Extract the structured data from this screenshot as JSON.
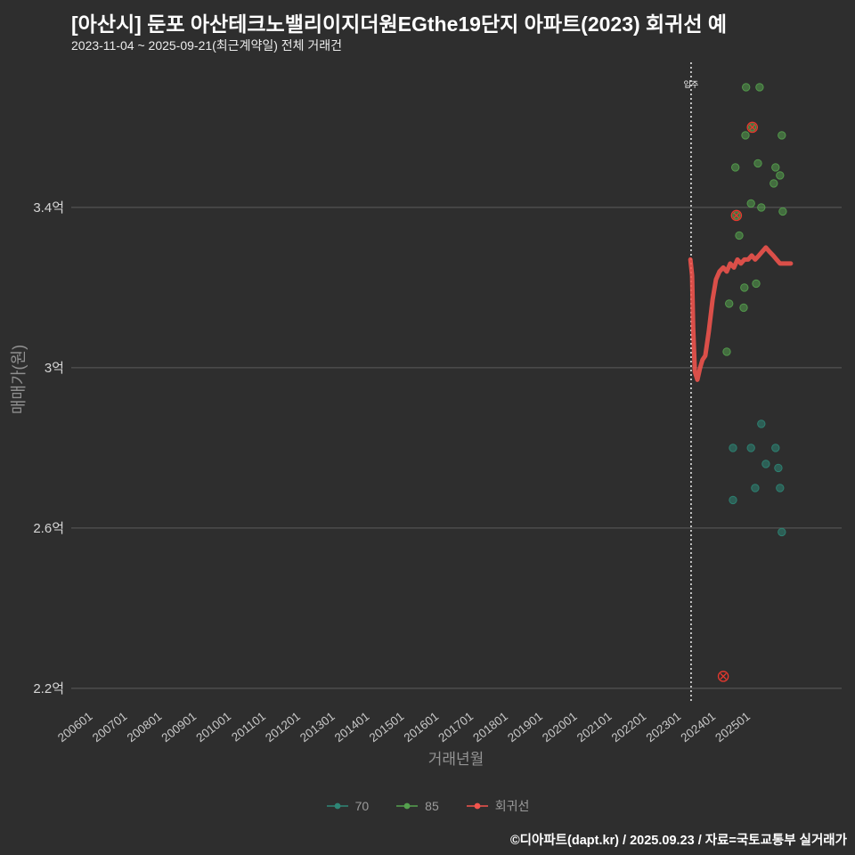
{
  "header": {
    "title": "[아산시] 둔포 아산테크노밸리이지더원EGthe19단지 아파트(2023) 회귀선 예",
    "subtitle": "2023-11-04 ~ 2025-09-21(최근계약일) 전체 거래건"
  },
  "footer": {
    "credit": "©디아파트(dapt.kr) / 2025.09.23 / 자료=국토교통부 실거래가"
  },
  "chart_data": {
    "type": "scatter",
    "title": "[아산시] 둔포 아산테크노밸리이지더원EGthe19단지 아파트(2023) 회귀선 예",
    "xlabel": "거래년월",
    "ylabel": "매매가(원)",
    "background": "#2e2e2e",
    "grid_color": "#5c5c5c",
    "grid": "horizontal-only",
    "legend_position": "bottom-center",
    "xlim": [
      2005.36,
      2027.62
    ],
    "ylim": [
      2.162,
      3.762
    ],
    "x_ticks": [
      {
        "label": "200601",
        "year": 2006
      },
      {
        "label": "200701",
        "year": 2007
      },
      {
        "label": "200801",
        "year": 2008
      },
      {
        "label": "200901",
        "year": 2009
      },
      {
        "label": "201001",
        "year": 2010
      },
      {
        "label": "201101",
        "year": 2011
      },
      {
        "label": "201201",
        "year": 2012
      },
      {
        "label": "201301",
        "year": 2013
      },
      {
        "label": "201401",
        "year": 2014
      },
      {
        "label": "201501",
        "year": 2015
      },
      {
        "label": "201601",
        "year": 2016
      },
      {
        "label": "201701",
        "year": 2017
      },
      {
        "label": "201801",
        "year": 2018
      },
      {
        "label": "201901",
        "year": 2019
      },
      {
        "label": "202001",
        "year": 2020
      },
      {
        "label": "202101",
        "year": 2021
      },
      {
        "label": "202201",
        "year": 2022
      },
      {
        "label": "202301",
        "year": 2023
      },
      {
        "label": "202401",
        "year": 2024
      },
      {
        "label": "202501",
        "year": 2025
      }
    ],
    "y_ticks": [
      {
        "label": "2.2억",
        "value": 2.2
      },
      {
        "label": "2.6억",
        "value": 2.6
      },
      {
        "label": "3억",
        "value": 3.0
      },
      {
        "label": "3.4억",
        "value": 3.4
      }
    ],
    "annotation": {
      "label": "입주",
      "year": 2023.27,
      "color": "#ffffff"
    },
    "series": [
      {
        "name": "70",
        "type": "scatter",
        "color": "#2e8676",
        "points": [
          [
            2024.48,
            2.8
          ],
          [
            2025.0,
            2.8
          ],
          [
            2025.3,
            2.86
          ],
          [
            2025.43,
            2.76
          ],
          [
            2025.12,
            2.7
          ],
          [
            2025.71,
            2.8
          ],
          [
            2025.79,
            2.75
          ],
          [
            2025.84,
            2.7
          ],
          [
            2024.48,
            2.67
          ],
          [
            2025.89,
            2.59
          ]
        ]
      },
      {
        "name": "85",
        "type": "scatter",
        "color": "#55a14e",
        "points": [
          [
            2024.86,
            3.7
          ],
          [
            2025.25,
            3.7
          ],
          [
            2025.04,
            3.6
          ],
          [
            2024.84,
            3.58
          ],
          [
            2025.89,
            3.58
          ],
          [
            2024.55,
            3.5
          ],
          [
            2025.2,
            3.51
          ],
          [
            2025.71,
            3.5
          ],
          [
            2025.84,
            3.48
          ],
          [
            2025.66,
            3.46
          ],
          [
            2025.0,
            3.41
          ],
          [
            2025.3,
            3.4
          ],
          [
            2025.92,
            3.39
          ],
          [
            2024.58,
            3.38
          ],
          [
            2024.66,
            3.33
          ],
          [
            2024.81,
            3.2
          ],
          [
            2025.15,
            3.21
          ],
          [
            2024.37,
            3.16
          ],
          [
            2024.79,
            3.15
          ],
          [
            2024.3,
            3.04
          ]
        ]
      },
      {
        "name": "회귀선",
        "type": "line",
        "color": "#f2544d",
        "points": [
          [
            2023.25,
            3.27
          ],
          [
            2023.3,
            3.23
          ],
          [
            2023.33,
            3.1
          ],
          [
            2023.38,
            2.99
          ],
          [
            2023.45,
            2.97
          ],
          [
            2023.53,
            3.0
          ],
          [
            2023.6,
            3.02
          ],
          [
            2023.68,
            3.03
          ],
          [
            2023.78,
            3.09
          ],
          [
            2023.89,
            3.17
          ],
          [
            2023.99,
            3.22
          ],
          [
            2024.09,
            3.24
          ],
          [
            2024.2,
            3.25
          ],
          [
            2024.3,
            3.24
          ],
          [
            2024.4,
            3.26
          ],
          [
            2024.51,
            3.25
          ],
          [
            2024.61,
            3.27
          ],
          [
            2024.71,
            3.26
          ],
          [
            2024.81,
            3.27
          ],
          [
            2024.92,
            3.27
          ],
          [
            2025.02,
            3.28
          ],
          [
            2025.12,
            3.27
          ],
          [
            2025.23,
            3.28
          ],
          [
            2025.33,
            3.29
          ],
          [
            2025.43,
            3.3
          ],
          [
            2025.53,
            3.29
          ],
          [
            2025.64,
            3.28
          ],
          [
            2025.74,
            3.27
          ],
          [
            2025.84,
            3.26
          ],
          [
            2025.95,
            3.26
          ],
          [
            2026.05,
            3.26
          ],
          [
            2026.15,
            3.26
          ]
        ]
      }
    ],
    "marked_points": {
      "color": "#e8392e",
      "points": [
        [
          2025.04,
          3.6
        ],
        [
          2024.58,
          3.38
        ],
        [
          2024.2,
          2.23
        ]
      ]
    },
    "legend": [
      {
        "label": "70",
        "color": "#2e8676"
      },
      {
        "label": "85",
        "color": "#55a14e"
      },
      {
        "label": "회귀선",
        "color": "#f2544d"
      }
    ]
  }
}
